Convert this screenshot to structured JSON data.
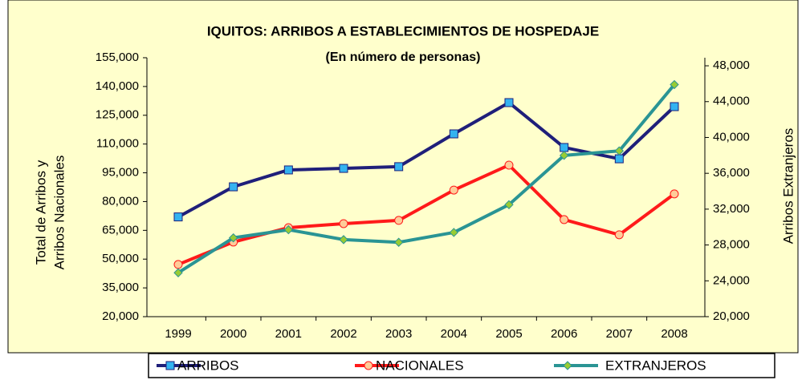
{
  "chart_data": {
    "type": "line",
    "title": "IQUITOS: ARRIBOS A ESTABLECIMIENTOS DE HOSPEDAJE",
    "subtitle": "(En número de personas)",
    "ylabel": [
      "Total de Arribos y",
      "Arribos Nacionales"
    ],
    "y2label": "Arribos Extranjeros",
    "categories": [
      "1999",
      "2000",
      "2001",
      "2002",
      "2003",
      "2004",
      "2005",
      "2006",
      "2007",
      "2008"
    ],
    "series": [
      {
        "name": "ARRIBOS",
        "color": "#1f1f7a",
        "marker": "square",
        "marker_color": "#33b3f0",
        "values": [
          72000,
          87700,
          96500,
          97300,
          98200,
          115300,
          131600,
          108200,
          102300,
          129500
        ]
      },
      {
        "name": "NACIONALES",
        "color": "#ff1a1a",
        "marker": "circle",
        "marker_color": "#ffcc99",
        "values": [
          47200,
          58900,
          66400,
          68500,
          70200,
          86000,
          99000,
          70600,
          62700,
          84000
        ]
      },
      {
        "name": "EXTRANJEROS",
        "color": "#2a9494",
        "marker": "diamond",
        "marker_color": "#99cc33",
        "axis": "y2",
        "values": [
          24900,
          28800,
          29700,
          28600,
          28300,
          29400,
          32500,
          38000,
          38500,
          45900
        ]
      }
    ],
    "ylim": [
      20000,
      155000
    ],
    "yticks": [
      {
        "value": 20000,
        "label": "20,000"
      },
      {
        "value": 35000,
        "label": "35,000"
      },
      {
        "value": 50000,
        "label": "50,000"
      },
      {
        "value": 65000,
        "label": "65,000"
      },
      {
        "value": 80000,
        "label": "80,000"
      },
      {
        "value": 95000,
        "label": "95,000"
      },
      {
        "value": 110000,
        "label": "110,000"
      },
      {
        "value": 125000,
        "label": "125,000"
      },
      {
        "value": 140000,
        "label": "140,000"
      },
      {
        "value": 155000,
        "label": "155,000"
      }
    ],
    "y2lim": [
      20000,
      48900
    ],
    "y2ticks": [
      {
        "value": 20000,
        "label": "20,000"
      },
      {
        "value": 24000,
        "label": "24,000"
      },
      {
        "value": 28000,
        "label": "28,000"
      },
      {
        "value": 32000,
        "label": "32,000"
      },
      {
        "value": 36000,
        "label": "36,000"
      },
      {
        "value": 40000,
        "label": "40,000"
      },
      {
        "value": 44000,
        "label": "44,000"
      },
      {
        "value": 48000,
        "label": "48,000"
      }
    ],
    "background": "#ffffcc",
    "legend": "bottom"
  }
}
